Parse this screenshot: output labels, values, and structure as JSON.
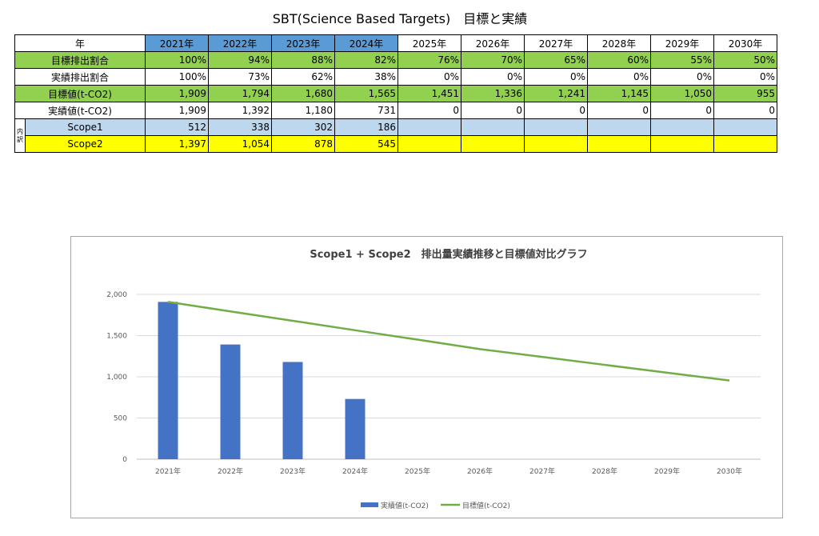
{
  "page_title": "SBT(Science Based Targets)　目標と実績",
  "table": {
    "header_label": "年",
    "years": [
      "2021年",
      "2022年",
      "2023年",
      "2024年",
      "2025年",
      "2026年",
      "2027年",
      "2028年",
      "2029年",
      "2030年"
    ],
    "naiyaku_label": [
      "内",
      "訳"
    ],
    "rows": [
      {
        "label": "目標排出割合",
        "values": [
          "100%",
          "94%",
          "88%",
          "82%",
          "76%",
          "70%",
          "65%",
          "60%",
          "55%",
          "50%"
        ],
        "color": "#92d050"
      },
      {
        "label": "実績排出割合",
        "values": [
          "100%",
          "73%",
          "62%",
          "38%",
          "0%",
          "0%",
          "0%",
          "0%",
          "0%",
          "0%"
        ],
        "color": "#ffffff"
      },
      {
        "label": "目標値(t-CO2)",
        "values": [
          "1,909",
          "1,794",
          "1,680",
          "1,565",
          "1,451",
          "1,336",
          "1,241",
          "1,145",
          "1,050",
          "955"
        ],
        "color": "#92d050"
      },
      {
        "label": "実績値(t-CO2)",
        "values": [
          "1,909",
          "1,392",
          "1,180",
          "731",
          "0",
          "0",
          "0",
          "0",
          "0",
          "0"
        ],
        "color": "#ffffff"
      },
      {
        "label": "Scope1",
        "values": [
          "512",
          "338",
          "302",
          "186",
          "",
          "",
          "",
          "",
          "",
          ""
        ],
        "color": "#bdd7ee"
      },
      {
        "label": "Scope2",
        "values": [
          "1,397",
          "1,054",
          "878",
          "545",
          "",
          "",
          "",
          "",
          "",
          ""
        ],
        "color": "#ffff00"
      }
    ],
    "colors": {
      "year_highlight": "#5b9bd5"
    }
  },
  "chart_data": {
    "type": "bar",
    "title": "Scope1 + Scope2　排出量実績推移と目標値対比グラフ",
    "categories": [
      "2021年",
      "2022年",
      "2023年",
      "2024年",
      "2025年",
      "2026年",
      "2027年",
      "2028年",
      "2029年",
      "2030年"
    ],
    "series": [
      {
        "name": "実績値(t-CO2)",
        "type": "bar",
        "color": "#4472c4",
        "values": [
          1909,
          1392,
          1180,
          731,
          0,
          0,
          0,
          0,
          0,
          0
        ]
      },
      {
        "name": "目標値(t-CO2)",
        "type": "line",
        "color": "#70ad47",
        "values": [
          1909,
          1794,
          1680,
          1565,
          1451,
          1336,
          1241,
          1145,
          1050,
          955
        ]
      }
    ],
    "yticks": [
      "0",
      "500",
      "1,000",
      "1,500",
      "2,000"
    ],
    "ylim": [
      0,
      2000
    ],
    "grid": true,
    "legend": "bottom"
  }
}
